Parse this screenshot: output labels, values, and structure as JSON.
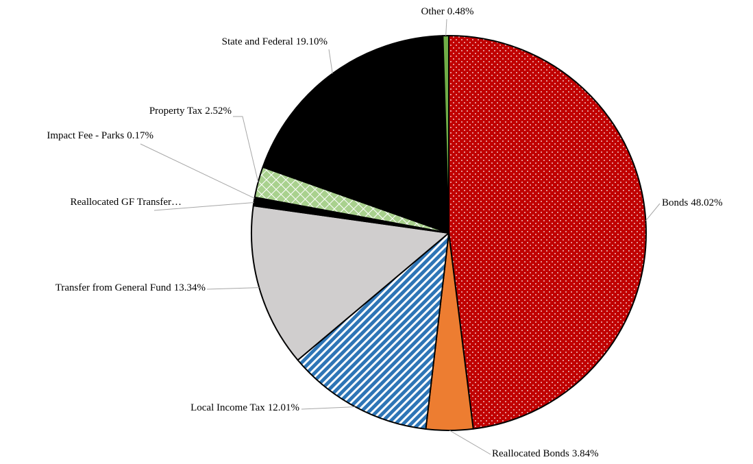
{
  "chart_data": {
    "type": "pie",
    "categories": [
      "Bonds",
      "Reallocated Bonds",
      "Local Income Tax",
      "Transfer from General Fund",
      "Reallocated GF Transfer…",
      "Impact Fee - Parks",
      "Property Tax",
      "State and Federal",
      "Other"
    ],
    "values": [
      48.02,
      3.84,
      12.01,
      13.34,
      0.52,
      0.17,
      2.52,
      19.1,
      0.48
    ],
    "value_labels": [
      "48.02%",
      "3.84%",
      "12.01%",
      "13.34%",
      null,
      "0.17%",
      "2.52%",
      "19.10%",
      "0.48%"
    ],
    "colors": [
      "#c00000",
      "#ed7d31",
      "#2e75b6",
      "#d0cece",
      "#000000",
      "#000000",
      "#a9d18e",
      "#000000",
      "#70ad47"
    ],
    "patterns": [
      "dots",
      null,
      "stripes",
      null,
      null,
      null,
      "diamonds",
      null,
      null
    ]
  }
}
